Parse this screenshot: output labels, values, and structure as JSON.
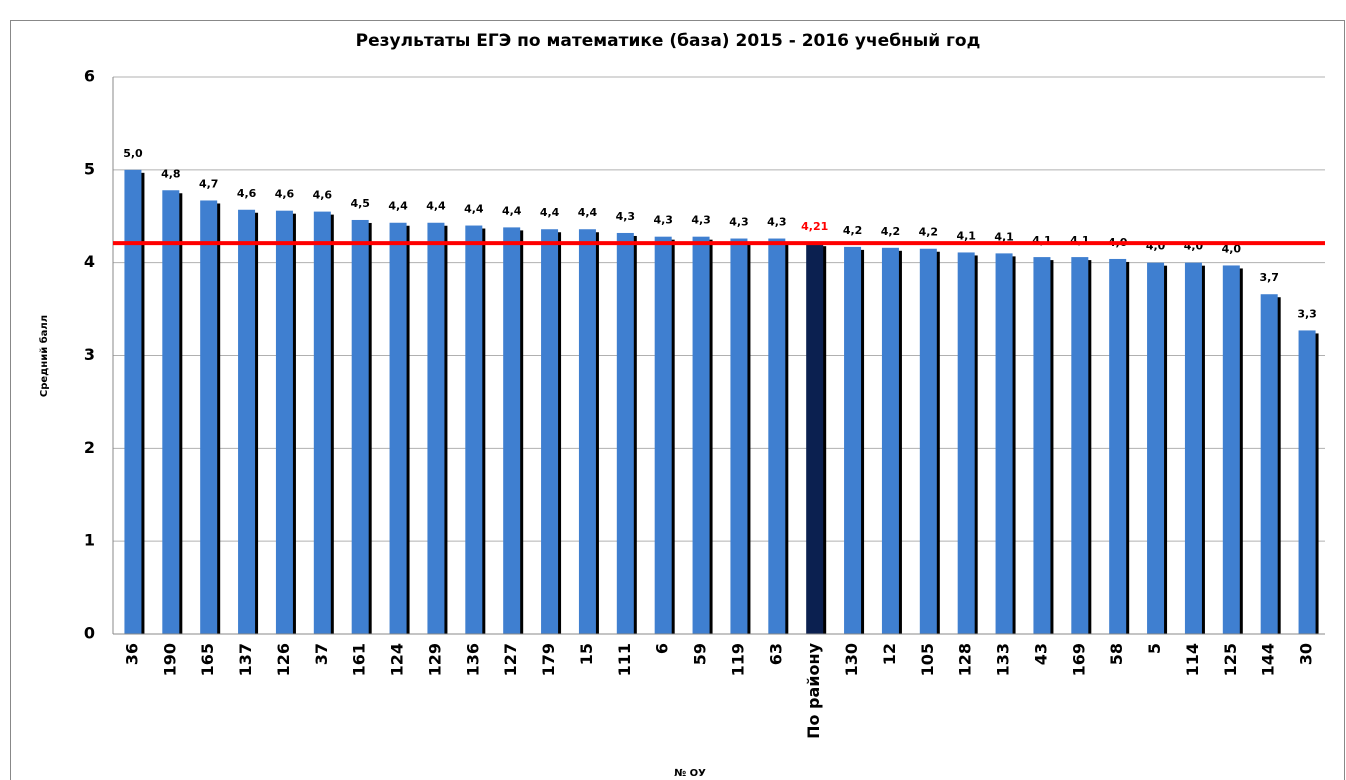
{
  "chart_data": {
    "type": "bar",
    "title": "Результаты ЕГЭ по математике (база) 2015 - 2016 учебный год",
    "y_label": "Средний балл",
    "x_label": "№ ОУ",
    "categories": [
      "36",
      "190",
      "165",
      "137",
      "126",
      "37",
      "161",
      "124",
      "129",
      "136",
      "127",
      "179",
      "15",
      "111",
      "6",
      "59",
      "119",
      "63",
      "По району",
      "130",
      "12",
      "105",
      "128",
      "133",
      "43",
      "169",
      "58",
      "5",
      "114",
      "125",
      "144",
      "30"
    ],
    "values": [
      5.0,
      4.78,
      4.67,
      4.57,
      4.56,
      4.55,
      4.46,
      4.43,
      4.43,
      4.4,
      4.38,
      4.36,
      4.36,
      4.32,
      4.28,
      4.28,
      4.26,
      4.26,
      4.21,
      4.17,
      4.16,
      4.15,
      4.11,
      4.1,
      4.06,
      4.06,
      4.04,
      4.0,
      4.0,
      3.97,
      3.66,
      3.27
    ],
    "value_labels": [
      "5,0",
      "4,8",
      "4,7",
      "4,6",
      "4,6",
      "4,6",
      "4,5",
      "4,4",
      "4,4",
      "4,4",
      "4,4",
      "4,4",
      "4,4",
      "4,3",
      "4,3",
      "4,3",
      "4,3",
      "4,3",
      "4,21",
      "4,2",
      "4,2",
      "4,2",
      "4,1",
      "4,1",
      "4,1",
      "4,1",
      "4,0",
      "4,0",
      "4,0",
      "4,0",
      "3,7",
      "3,3"
    ],
    "colors": [
      "#3f7fd0",
      "#3f7fd0",
      "#3f7fd0",
      "#3f7fd0",
      "#3f7fd0",
      "#3f7fd0",
      "#3f7fd0",
      "#3f7fd0",
      "#3f7fd0",
      "#3f7fd0",
      "#3f7fd0",
      "#3f7fd0",
      "#3f7fd0",
      "#3f7fd0",
      "#3f7fd0",
      "#3f7fd0",
      "#3f7fd0",
      "#3f7fd0",
      "#0b2050",
      "#3f7fd0",
      "#3f7fd0",
      "#3f7fd0",
      "#3f7fd0",
      "#3f7fd0",
      "#3f7fd0",
      "#3f7fd0",
      "#3f7fd0",
      "#3f7fd0",
      "#3f7fd0",
      "#3f7fd0",
      "#3f7fd0",
      "#3f7fd0"
    ],
    "value_label_colors": [
      "#000000",
      "#000000",
      "#000000",
      "#000000",
      "#000000",
      "#000000",
      "#000000",
      "#000000",
      "#000000",
      "#000000",
      "#000000",
      "#000000",
      "#000000",
      "#000000",
      "#000000",
      "#000000",
      "#000000",
      "#000000",
      "#ff0000",
      "#000000",
      "#000000",
      "#000000",
      "#000000",
      "#000000",
      "#000000",
      "#000000",
      "#000000",
      "#000000",
      "#000000",
      "#000000",
      "#000000",
      "#000000"
    ],
    "reference_line": {
      "value": 4.21,
      "color": "#ff0000"
    },
    "ylim": [
      0,
      6
    ],
    "yticks": [
      0,
      1,
      2,
      3,
      4,
      5,
      6
    ],
    "grid": true
  }
}
